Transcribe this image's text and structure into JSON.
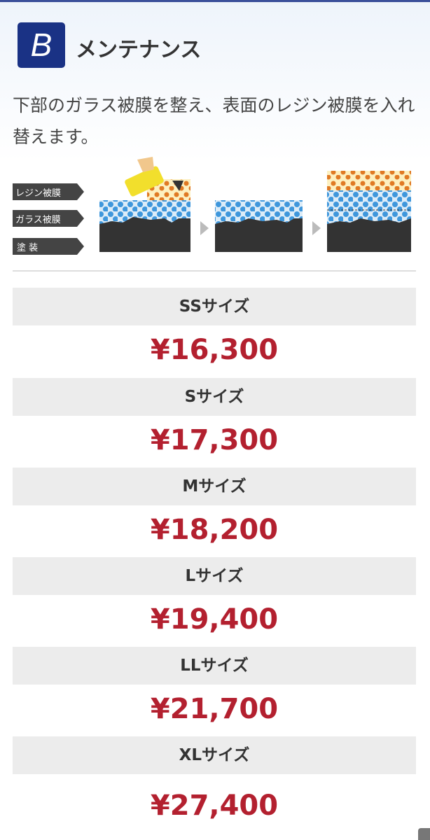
{
  "section": {
    "badge": "B",
    "title": "メンテナンス",
    "description": "下部のガラス被膜を整え、表面のレジン被膜を入れ替えます。"
  },
  "diagram": {
    "labels": [
      "レジン被膜",
      "ガラス被膜",
      "塗 装"
    ]
  },
  "prices": [
    {
      "size": "SSサイズ",
      "price": "¥16,300"
    },
    {
      "size": "Sサイズ",
      "price": "¥17,300"
    },
    {
      "size": "Mサイズ",
      "price": "¥18,200"
    },
    {
      "size": "Lサイズ",
      "price": "¥19,400"
    },
    {
      "size": "LLサイズ",
      "price": "¥21,700"
    },
    {
      "size": "XLサイズ",
      "price": "¥27,400"
    }
  ],
  "colors": {
    "badge": "#1a3285",
    "price": "#b3202f",
    "header_bg": "#ececec"
  }
}
